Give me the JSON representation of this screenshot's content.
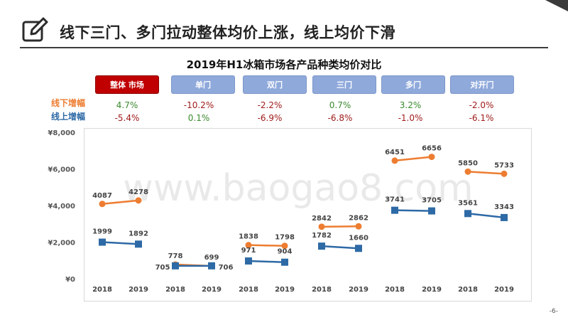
{
  "header": {
    "title": "线下三门、多门拉动整体均价上涨，线上均价下滑"
  },
  "subtitle": "2019年H1冰箱市场各产品种类均价对比",
  "categories": [
    {
      "label": "整体 市场",
      "active": true
    },
    {
      "label": "单门",
      "active": false
    },
    {
      "label": "双门",
      "active": false
    },
    {
      "label": "三门",
      "active": false
    },
    {
      "label": "多门",
      "active": false
    },
    {
      "label": "对开门",
      "active": false
    }
  ],
  "rows": {
    "offline_label": "线下增幅",
    "online_label": "线上增幅",
    "offline": [
      "4.7%",
      "-10.2%",
      "-2.2%",
      "0.7%",
      "3.2%",
      "-2.0%"
    ],
    "online": [
      "-5.4%",
      "0.1%",
      "-6.9%",
      "-6.8%",
      "-1.0%",
      "-6.1%"
    ]
  },
  "colors": {
    "offline": "#ed7d31",
    "online": "#2e6aa6",
    "active": "#c00000",
    "inactive": "#8fa9db",
    "positive": "#3a8a2e",
    "negative": "#a01b1b"
  },
  "watermark": "www.baogao8.com",
  "page_number": "-6-",
  "chart_data": {
    "type": "line",
    "y_ticks": [
      "¥0",
      "¥2,000",
      "¥4,000",
      "¥6,000",
      "¥8,000"
    ],
    "ylim": [
      0,
      8000
    ],
    "x_labels": [
      "2018",
      "2019",
      "2018",
      "2019",
      "2018",
      "2019",
      "2018",
      "2019",
      "2018",
      "2019",
      "2018",
      "2019"
    ],
    "groups": [
      {
        "category": "整体 市场",
        "offline": [
          4087,
          4278
        ],
        "online": [
          1999,
          1892
        ]
      },
      {
        "category": "单门",
        "offline": [
          778,
          699
        ],
        "online": [
          705,
          706
        ]
      },
      {
        "category": "双门",
        "offline": [
          1838,
          1798
        ],
        "online": [
          971,
          904
        ]
      },
      {
        "category": "三门",
        "offline": [
          2842,
          2862
        ],
        "online": [
          1782,
          1660
        ]
      },
      {
        "category": "多门",
        "offline": [
          6451,
          6656
        ],
        "online": [
          3741,
          3705
        ]
      },
      {
        "category": "对开门",
        "offline": [
          5850,
          5733
        ],
        "online": [
          3561,
          3343
        ]
      }
    ]
  }
}
